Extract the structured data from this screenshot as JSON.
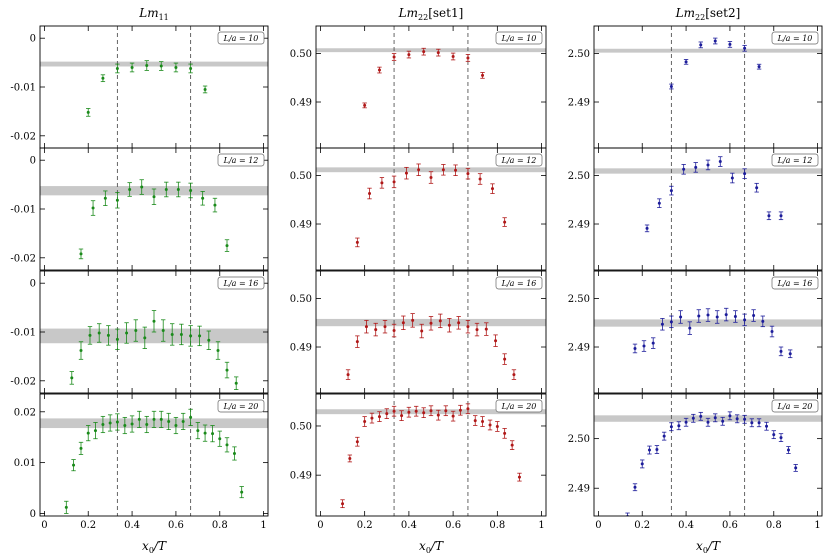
{
  "figure": {
    "column_titles": [
      "Lm11",
      "Lm22[set1]",
      "Lm22[set2]"
    ],
    "column_title_parts": [
      {
        "base": "Lm",
        "sub": "11",
        "suffix": ""
      },
      {
        "base": "Lm",
        "sub": "22",
        "suffix": "[set1]"
      },
      {
        "base": "Lm",
        "sub": "22",
        "suffix": "[set2]"
      }
    ],
    "xlabel": "x0/T",
    "xlabel_parts": {
      "base": "x",
      "sub": "0",
      "rest": "/T"
    },
    "x_ticks": [
      0,
      0.2,
      0.4,
      0.6,
      0.8,
      1
    ],
    "x_tick_labels": [
      "0",
      "0.2",
      "0.4",
      "0.6",
      "0.8",
      "1"
    ],
    "xlim": [
      -0.02,
      1.02
    ],
    "vlines": [
      0.333,
      0.667
    ],
    "row_labels": [
      "L/a = 10",
      "L/a = 12",
      "L/a = 16",
      "L/a = 20"
    ],
    "colors": {
      "Lm11": "#1a8a1a",
      "Lm22[set1]": "#b01818",
      "Lm22[set2]": "#1c1c9a",
      "band": "#c8c8c8",
      "vline": "#555555"
    }
  },
  "chart_data": [
    {
      "type": "scatter",
      "column": "Lm11",
      "row_label": "L/a = 10",
      "ylim": [
        -0.0225,
        0.0025
      ],
      "y_ticks": [
        0,
        -0.01,
        -0.02
      ],
      "y_tick_labels": [
        "0",
        "-0.01",
        "-0.02"
      ],
      "band": [
        -0.0058,
        -0.0048
      ],
      "series": [
        {
          "x": [
            0.2,
            0.267,
            0.333,
            0.4,
            0.467,
            0.533,
            0.6,
            0.667,
            0.733
          ],
          "y": [
            -0.0152,
            -0.0082,
            -0.0062,
            -0.006,
            -0.0056,
            -0.0057,
            -0.006,
            -0.0062,
            -0.0105
          ],
          "err": [
            0.0008,
            0.0007,
            0.0009,
            0.0009,
            0.001,
            0.0009,
            0.0009,
            0.0009,
            0.0007
          ]
        }
      ]
    },
    {
      "type": "scatter",
      "column": "Lm22[set1]",
      "row_label": "L/a = 10",
      "ylim": [
        0.4805,
        0.5057
      ],
      "y_ticks": [
        0.5,
        0.49
      ],
      "y_tick_labels": [
        "0.50",
        "0.49"
      ],
      "band": [
        0.5003,
        0.5011
      ],
      "series": [
        {
          "x": [
            0.2,
            0.267,
            0.333,
            0.4,
            0.467,
            0.533,
            0.6,
            0.667,
            0.733
          ],
          "y": [
            0.4893,
            0.4966,
            0.4993,
            0.4998,
            0.5004,
            0.5002,
            0.4994,
            0.4991,
            0.4955
          ],
          "err": [
            0.0005,
            0.0006,
            0.0007,
            0.0007,
            0.0007,
            0.0007,
            0.0007,
            0.0007,
            0.0006
          ]
        }
      ]
    },
    {
      "type": "scatter",
      "column": "Lm22[set2]",
      "row_label": "L/a = 10",
      "ylim": [
        2.4805,
        2.5057
      ],
      "y_ticks": [
        2.5,
        2.49
      ],
      "y_tick_labels": [
        "2.50",
        "2.49"
      ],
      "band": [
        2.5002,
        2.501
      ],
      "series": [
        {
          "x": [
            0.333,
            0.4,
            0.467,
            0.533,
            0.6,
            0.667,
            0.733
          ],
          "y": [
            2.4932,
            2.4983,
            2.5018,
            2.5026,
            2.5019,
            2.5011,
            2.4973
          ],
          "err": [
            0.0005,
            0.0005,
            0.0006,
            0.0006,
            0.0006,
            0.0006,
            0.0005
          ]
        }
      ]
    },
    {
      "type": "scatter",
      "column": "Lm11",
      "row_label": "L/a = 12",
      "ylim": [
        -0.0225,
        0.0025
      ],
      "y_ticks": [
        0,
        -0.01,
        -0.02
      ],
      "y_tick_labels": [
        "0",
        "-0.01",
        "-0.02"
      ],
      "band": [
        -0.0072,
        -0.0053
      ],
      "series": [
        {
          "x": [
            0.167,
            0.222,
            0.278,
            0.333,
            0.389,
            0.444,
            0.5,
            0.556,
            0.611,
            0.667,
            0.722,
            0.778,
            0.833
          ],
          "y": [
            -0.0192,
            -0.0098,
            -0.0078,
            -0.0082,
            -0.006,
            -0.0055,
            -0.0075,
            -0.006,
            -0.006,
            -0.0062,
            -0.0078,
            -0.0092,
            -0.0175
          ],
          "err": [
            0.001,
            0.0015,
            0.0015,
            0.0016,
            0.0014,
            0.0015,
            0.0016,
            0.0015,
            0.0015,
            0.0015,
            0.0014,
            0.0014,
            0.0012
          ]
        }
      ]
    },
    {
      "type": "scatter",
      "column": "Lm22[set1]",
      "row_label": "L/a = 12",
      "ylim": [
        0.4805,
        0.5057
      ],
      "y_ticks": [
        0.5,
        0.49
      ],
      "y_tick_labels": [
        "0.50",
        "0.49"
      ],
      "band": [
        0.5007,
        0.5017
      ],
      "series": [
        {
          "x": [
            0.167,
            0.222,
            0.278,
            0.333,
            0.389,
            0.444,
            0.5,
            0.556,
            0.611,
            0.667,
            0.722,
            0.778,
            0.833
          ],
          "y": [
            0.4862,
            0.4963,
            0.4985,
            0.4987,
            0.5005,
            0.5012,
            0.4996,
            0.5012,
            0.5011,
            0.5004,
            0.4993,
            0.4973,
            0.4904
          ],
          "err": [
            0.0009,
            0.0011,
            0.0011,
            0.0012,
            0.0012,
            0.0012,
            0.0012,
            0.0011,
            0.0011,
            0.0011,
            0.0011,
            0.001,
            0.0009
          ]
        }
      ]
    },
    {
      "type": "scatter",
      "column": "Lm22[set2]",
      "row_label": "L/a = 12",
      "ylim": [
        2.4805,
        2.5057
      ],
      "y_ticks": [
        2.5,
        2.49
      ],
      "y_tick_labels": [
        "2.50",
        "2.49"
      ],
      "band": [
        2.5004,
        2.5015
      ],
      "series": [
        {
          "x": [
            0.222,
            0.278,
            0.333,
            0.389,
            0.444,
            0.5,
            0.556,
            0.611,
            0.667,
            0.722,
            0.778,
            0.833
          ],
          "y": [
            2.4891,
            2.4943,
            2.4969,
            2.5013,
            2.5017,
            2.5022,
            2.5029,
            2.4995,
            2.5004,
            2.4975,
            2.4917,
            2.4917
          ],
          "err": [
            0.0007,
            0.0009,
            0.0009,
            0.001,
            0.001,
            0.001,
            0.001,
            0.001,
            0.001,
            0.0009,
            0.0008,
            0.0008
          ]
        }
      ]
    },
    {
      "type": "scatter",
      "column": "Lm11",
      "row_label": "L/a = 16",
      "ylim": [
        -0.0225,
        0.0025
      ],
      "y_ticks": [
        0,
        -0.01,
        -0.02
      ],
      "y_tick_labels": [
        "0",
        "-0.01",
        "-0.02"
      ],
      "band": [
        -0.0123,
        -0.0093
      ],
      "series": [
        {
          "x": [
            0.125,
            0.167,
            0.208,
            0.25,
            0.292,
            0.333,
            0.375,
            0.417,
            0.458,
            0.5,
            0.542,
            0.583,
            0.625,
            0.667,
            0.708,
            0.75,
            0.792,
            0.833,
            0.875
          ],
          "y": [
            -0.0194,
            -0.0138,
            -0.0107,
            -0.0102,
            -0.0107,
            -0.0115,
            -0.0102,
            -0.0097,
            -0.0112,
            -0.0078,
            -0.0097,
            -0.0105,
            -0.0105,
            -0.0108,
            -0.0108,
            -0.0117,
            -0.0138,
            -0.0178,
            -0.0205
          ],
          "err": [
            0.0013,
            0.0018,
            0.0018,
            0.0019,
            0.002,
            0.0021,
            0.0021,
            0.0022,
            0.0022,
            0.0022,
            0.0022,
            0.0022,
            0.0021,
            0.0021,
            0.002,
            0.0019,
            0.0018,
            0.0016,
            0.0013
          ]
        }
      ]
    },
    {
      "type": "scatter",
      "column": "Lm22[set1]",
      "row_label": "L/a = 16",
      "ylim": [
        0.4805,
        0.5057
      ],
      "y_ticks": [
        0.5,
        0.49
      ],
      "y_tick_labels": [
        "0.50",
        "0.49"
      ],
      "band": [
        0.4943,
        0.4958
      ],
      "series": [
        {
          "x": [
            0.125,
            0.167,
            0.208,
            0.25,
            0.292,
            0.333,
            0.375,
            0.417,
            0.458,
            0.5,
            0.542,
            0.583,
            0.625,
            0.667,
            0.708,
            0.75,
            0.792,
            0.833,
            0.875
          ],
          "y": [
            0.4843,
            0.4911,
            0.4942,
            0.4936,
            0.4942,
            0.4934,
            0.495,
            0.4955,
            0.4933,
            0.4949,
            0.4954,
            0.4945,
            0.495,
            0.4942,
            0.4936,
            0.4937,
            0.4913,
            0.4875,
            0.4843
          ],
          "err": [
            0.001,
            0.0012,
            0.0013,
            0.0013,
            0.0013,
            0.0013,
            0.0014,
            0.0014,
            0.0014,
            0.0014,
            0.0014,
            0.0014,
            0.0013,
            0.0013,
            0.0013,
            0.0013,
            0.0012,
            0.0011,
            0.001
          ]
        }
      ]
    },
    {
      "type": "scatter",
      "column": "Lm22[set2]",
      "row_label": "L/a = 16",
      "ylim": [
        2.4805,
        2.5057
      ],
      "y_ticks": [
        2.5,
        2.49
      ],
      "y_tick_labels": [
        "2.50",
        "2.49"
      ],
      "band": [
        2.4942,
        2.4957
      ],
      "series": [
        {
          "x": [
            0.167,
            0.208,
            0.25,
            0.292,
            0.333,
            0.375,
            0.417,
            0.458,
            0.5,
            0.542,
            0.583,
            0.625,
            0.667,
            0.708,
            0.75,
            0.792,
            0.833,
            0.875
          ],
          "y": [
            2.4897,
            2.4902,
            2.4908,
            2.4947,
            2.4952,
            2.4962,
            2.4939,
            2.4964,
            2.4966,
            2.4962,
            2.4967,
            2.4963,
            2.4956,
            2.4965,
            2.4953,
            2.4932,
            2.4891,
            2.4886
          ],
          "err": [
            0.0009,
            0.0011,
            0.0011,
            0.0012,
            0.0012,
            0.0013,
            0.0013,
            0.0013,
            0.0013,
            0.0013,
            0.0013,
            0.0012,
            0.0012,
            0.0012,
            0.0011,
            0.0011,
            0.0009,
            0.0008
          ]
        }
      ]
    },
    {
      "type": "scatter",
      "column": "Lm11",
      "row_label": "L/a = 20",
      "ylim": [
        -0.0005,
        0.0235
      ],
      "y_ticks": [
        0.02,
        0.01,
        0
      ],
      "y_tick_labels": [
        "0.02",
        "0.01",
        "0"
      ],
      "band": [
        0.0168,
        0.0187
      ],
      "series": [
        {
          "x": [
            0.1,
            0.133,
            0.167,
            0.2,
            0.233,
            0.267,
            0.3,
            0.333,
            0.367,
            0.4,
            0.433,
            0.467,
            0.5,
            0.533,
            0.567,
            0.6,
            0.633,
            0.667,
            0.7,
            0.733,
            0.767,
            0.8,
            0.833,
            0.867,
            0.9
          ],
          "y": [
            0.0012,
            0.0095,
            0.0128,
            0.0158,
            0.0163,
            0.0175,
            0.0178,
            0.018,
            0.0173,
            0.0176,
            0.0185,
            0.0175,
            0.0185,
            0.0185,
            0.0181,
            0.0173,
            0.0181,
            0.0189,
            0.0163,
            0.0158,
            0.0157,
            0.0147,
            0.0135,
            0.0118,
            0.0042
          ],
          "err": [
            0.0012,
            0.0011,
            0.0012,
            0.0015,
            0.0016,
            0.0016,
            0.0016,
            0.0016,
            0.0016,
            0.0016,
            0.0016,
            0.0016,
            0.0016,
            0.0016,
            0.0016,
            0.0016,
            0.0016,
            0.0016,
            0.0016,
            0.0016,
            0.0016,
            0.0015,
            0.0014,
            0.0013,
            0.0011
          ]
        }
      ]
    },
    {
      "type": "scatter",
      "column": "Lm22[set1]",
      "row_label": "L/a = 20",
      "ylim": [
        0.4817,
        0.5065
      ],
      "y_ticks": [
        0.5,
        0.49
      ],
      "y_tick_labels": [
        "0.50",
        "0.49"
      ],
      "band": [
        0.5024,
        0.5034
      ],
      "series": [
        {
          "x": [
            0.1,
            0.133,
            0.167,
            0.2,
            0.233,
            0.267,
            0.3,
            0.333,
            0.367,
            0.4,
            0.433,
            0.467,
            0.5,
            0.533,
            0.567,
            0.6,
            0.633,
            0.667,
            0.7,
            0.733,
            0.767,
            0.8,
            0.833,
            0.867,
            0.9
          ],
          "y": [
            0.4842,
            0.4934,
            0.4968,
            0.5009,
            0.5016,
            0.5019,
            0.5025,
            0.503,
            0.5021,
            0.5028,
            0.503,
            0.5027,
            0.5031,
            0.5022,
            0.5031,
            0.502,
            0.5032,
            0.5035,
            0.5011,
            0.5009,
            0.5002,
            0.4999,
            0.4985,
            0.4961,
            0.4896
          ],
          "err": [
            0.0008,
            0.0007,
            0.0009,
            0.001,
            0.001,
            0.001,
            0.001,
            0.001,
            0.001,
            0.001,
            0.001,
            0.001,
            0.001,
            0.001,
            0.001,
            0.001,
            0.001,
            0.001,
            0.001,
            0.001,
            0.001,
            0.001,
            0.001,
            0.0009,
            0.0008
          ]
        }
      ]
    },
    {
      "type": "scatter",
      "column": "Lm22[set2]",
      "row_label": "L/a = 20",
      "ylim": [
        2.4844,
        2.509
      ],
      "y_ticks": [
        2.5,
        2.49
      ],
      "y_tick_labels": [
        "2.50",
        "2.49"
      ],
      "band": [
        2.5034,
        2.5047
      ],
      "series": [
        {
          "x": [
            0.1,
            0.133,
            0.167,
            0.2,
            0.233,
            0.267,
            0.3,
            0.333,
            0.367,
            0.4,
            0.433,
            0.467,
            0.5,
            0.533,
            0.567,
            0.6,
            0.633,
            0.667,
            0.7,
            0.733,
            0.767,
            0.8,
            0.833,
            0.867,
            0.9
          ],
          "y": [
            2.4835,
            2.4843,
            2.4902,
            2.4949,
            2.4977,
            2.4978,
            2.5005,
            2.5024,
            2.5026,
            2.5033,
            2.5041,
            2.5045,
            2.5033,
            2.5042,
            2.5035,
            2.5046,
            2.504,
            2.5039,
            2.5032,
            2.5032,
            2.5025,
            2.5008,
            2.5002,
            2.4977,
            2.4941
          ],
          "err": [
            0.0007,
            0.0007,
            0.0007,
            0.0008,
            0.0008,
            0.0008,
            0.0008,
            0.0008,
            0.0008,
            0.0008,
            0.0008,
            0.0008,
            0.0008,
            0.0008,
            0.0008,
            0.0008,
            0.0008,
            0.0008,
            0.0008,
            0.0008,
            0.0008,
            0.0008,
            0.0008,
            0.0007,
            0.0007
          ]
        }
      ]
    }
  ]
}
